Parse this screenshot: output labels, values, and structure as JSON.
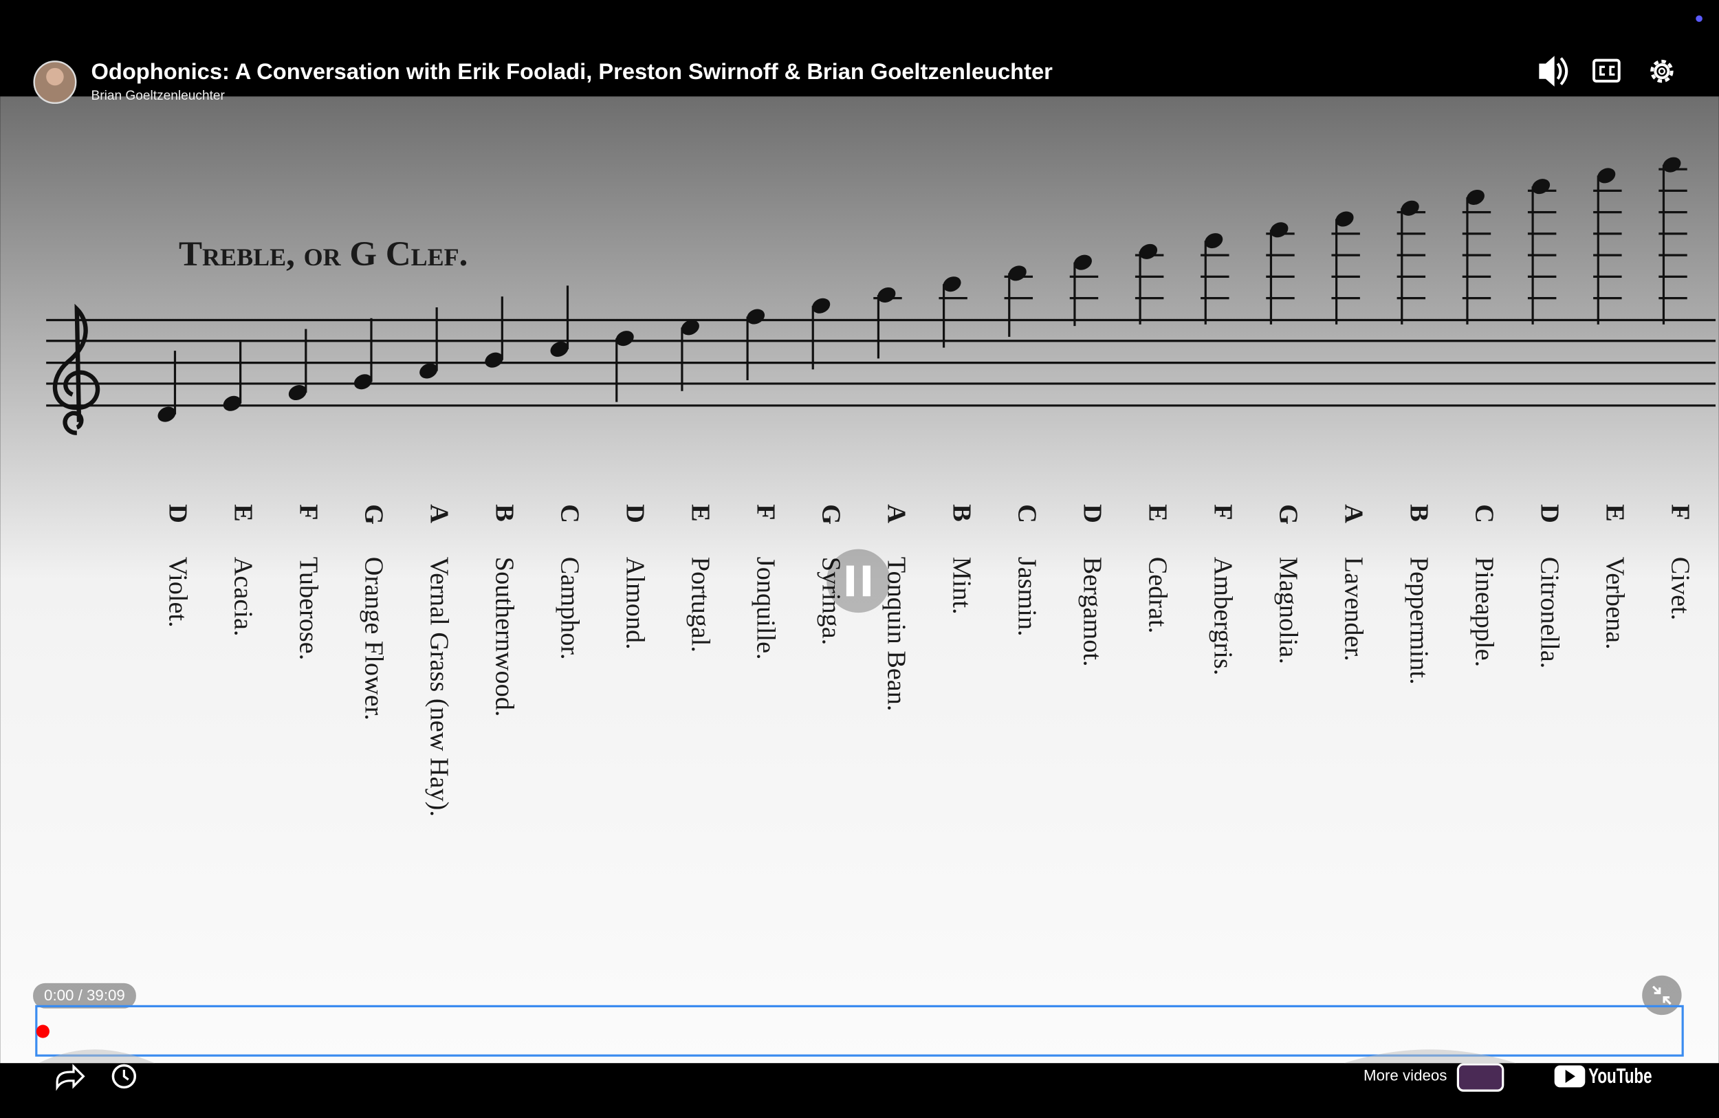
{
  "header": {
    "title": "Odophonics: A Conversation with Erik Fooladi, Preston Swirnoff & Brian Goeltzenleuchter",
    "channel": "Brian Goeltzenleuchter"
  },
  "sheet": {
    "heading": "Treble, or G Clef.",
    "entries": [
      {
        "note": "D",
        "scent": "Violet."
      },
      {
        "note": "E",
        "scent": "Acacia."
      },
      {
        "note": "F",
        "scent": "Tuberose."
      },
      {
        "note": "G",
        "scent": "Orange Flower."
      },
      {
        "note": "A",
        "scent": "Vernal Grass (new Hay)."
      },
      {
        "note": "B",
        "scent": "Southernwood."
      },
      {
        "note": "C",
        "scent": "Camphor."
      },
      {
        "note": "D",
        "scent": "Almond."
      },
      {
        "note": "E",
        "scent": "Portugal."
      },
      {
        "note": "F",
        "scent": "Jonquille."
      },
      {
        "note": "G",
        "scent": "Syringa."
      },
      {
        "note": "A",
        "scent": "Tonquin Bean."
      },
      {
        "note": "B",
        "scent": "Mint."
      },
      {
        "note": "C",
        "scent": "Jasmin."
      },
      {
        "note": "D",
        "scent": "Bergamot."
      },
      {
        "note": "E",
        "scent": "Cedrat."
      },
      {
        "note": "F",
        "scent": "Ambergris."
      },
      {
        "note": "G",
        "scent": "Magnolia."
      },
      {
        "note": "A",
        "scent": "Lavender."
      },
      {
        "note": "B",
        "scent": "Peppermint."
      },
      {
        "note": "C",
        "scent": "Pineapple."
      },
      {
        "note": "D",
        "scent": "Citronella."
      },
      {
        "note": "E",
        "scent": "Verbena."
      },
      {
        "note": "F",
        "scent": "Civet."
      }
    ]
  },
  "player": {
    "time": "0:00 / 39:09",
    "more_videos": "More videos",
    "logo": "YouTube"
  }
}
